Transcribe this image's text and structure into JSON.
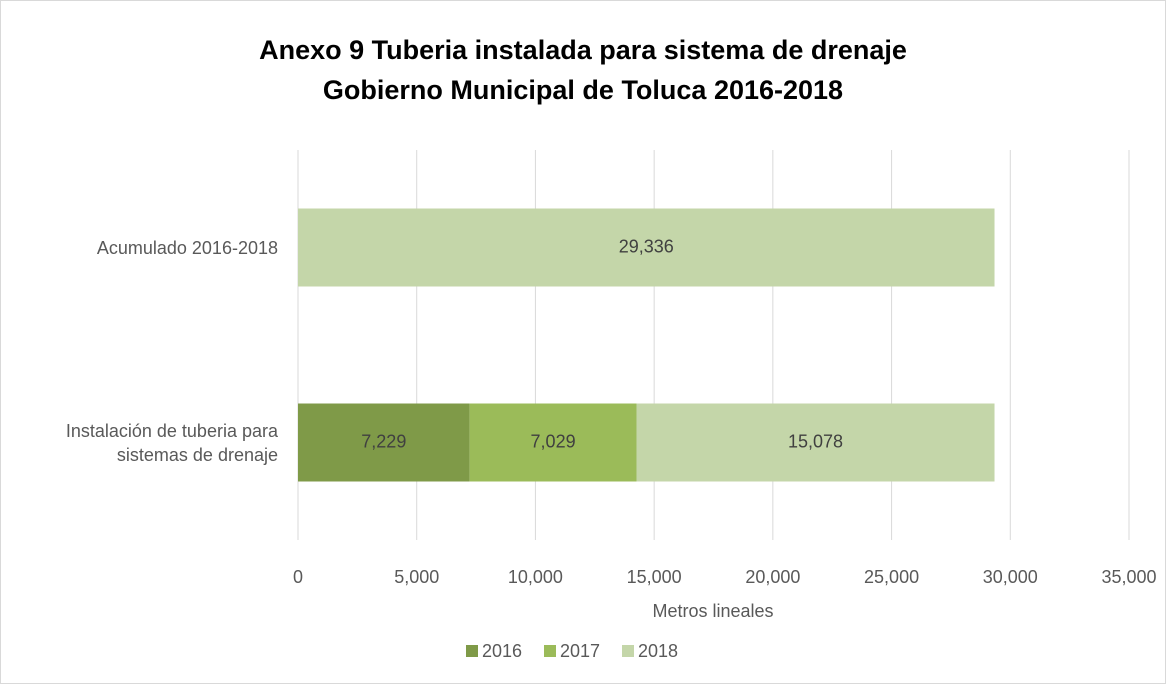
{
  "chart_data": {
    "type": "stacked_barh",
    "title": [
      "Anexo 9 Tuberia instalada para sistema de drenaje",
      "Gobierno Municipal de Toluca 2016-2018"
    ],
    "categories": [
      "Acumulado 2016-2018",
      "Instalación de tuberia para sistemas de drenaje"
    ],
    "series": [
      {
        "name": "2016",
        "color": "#7f9a48",
        "values": [
          null,
          7229
        ],
        "value_labels": [
          null,
          "7,229"
        ]
      },
      {
        "name": "2017",
        "color": "#9bbb59",
        "values": [
          null,
          7029
        ],
        "value_labels": [
          null,
          "7,029"
        ]
      },
      {
        "name": "2018",
        "color": "#c4d6a9",
        "values": [
          29336,
          15078
        ],
        "value_labels": [
          "29,336",
          "15,078"
        ]
      }
    ],
    "xlabel": "Metros lineales",
    "xlim": [
      0,
      35000
    ],
    "xticks": [
      0,
      {
        "value": 5000,
        "label": "5,000"
      },
      {
        "value": 10000,
        "label": "10,000"
      },
      {
        "value": 15000,
        "label": "15,000"
      },
      {
        "value": 20000,
        "label": "20,000"
      },
      {
        "value": 25000,
        "label": "25,000"
      },
      {
        "value": 30000,
        "label": "30,000"
      },
      {
        "value": 35000,
        "label": "35,000"
      }
    ],
    "grid": true,
    "legend": "bottom"
  }
}
